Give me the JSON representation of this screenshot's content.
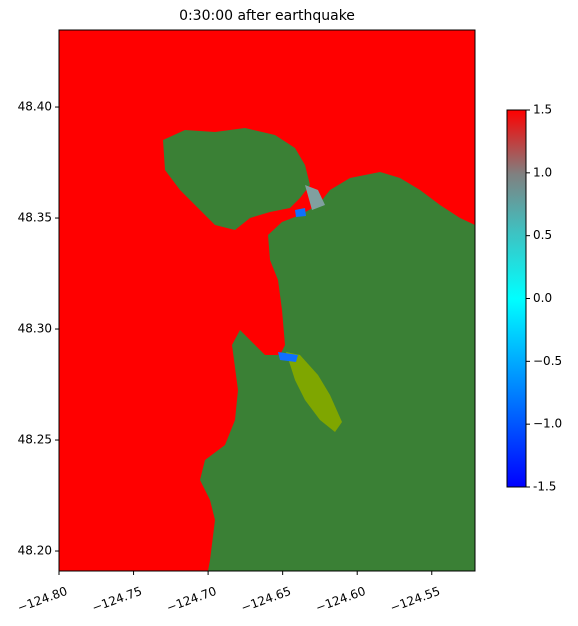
{
  "chart_data": {
    "type": "map",
    "title": "0:30:00 after earthquake",
    "xlim": [
      -124.8,
      -124.521
    ],
    "ylim": [
      48.191,
      48.4347
    ],
    "xticks": [
      {
        "value": -124.8,
        "label": "−124.80"
      },
      {
        "value": -124.75,
        "label": "−124.75"
      },
      {
        "value": -124.7,
        "label": "−124.70"
      },
      {
        "value": -124.65,
        "label": "−124.65"
      },
      {
        "value": -124.6,
        "label": "−124.60"
      },
      {
        "value": -124.55,
        "label": "−124.55"
      }
    ],
    "yticks": [
      {
        "value": 48.2,
        "label": "48.20"
      },
      {
        "value": 48.25,
        "label": "48.25"
      },
      {
        "value": 48.3,
        "label": "48.30"
      },
      {
        "value": 48.35,
        "label": "48.35"
      },
      {
        "value": 48.4,
        "label": "48.40"
      }
    ],
    "clim": [
      -1.5,
      1.5
    ],
    "cticks": [
      -1.5,
      {
        "value": -1,
        "label": "−1.0"
      },
      {
        "value": -0.5,
        "label": "−0.5"
      },
      {
        "value": 0,
        "label": "0.0"
      },
      {
        "value": 0.5,
        "label": "0.5"
      },
      {
        "value": 1,
        "label": "1.0"
      },
      1.5
    ]
  }
}
